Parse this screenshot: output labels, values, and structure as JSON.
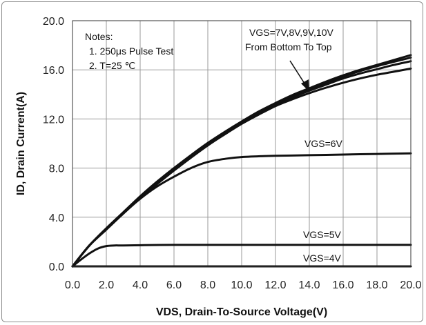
{
  "chart_data": {
    "type": "line",
    "xlabel": "VDS,  Drain-To-Source Voltage(V)",
    "ylabel": "ID,  Drain Current(A)",
    "xlim": [
      0,
      20
    ],
    "ylim": [
      0,
      20
    ],
    "xticks": [
      "0.0",
      "2.0",
      "4.0",
      "6.0",
      "8.0",
      "10.0",
      "12.0",
      "14.0",
      "16.0",
      "18.0",
      "20.0"
    ],
    "yticks": [
      "0.0",
      "4.0",
      "8.0",
      "12.0",
      "16.0",
      "20.0"
    ],
    "grid": true,
    "notes": [
      "Notes:",
      "1. 250μs  Pulse Test",
      "2. T=25 ℃"
    ],
    "annotations": {
      "top_group_line1": "VGS=7V,8V,9V,10V",
      "top_group_line2": "From Bottom To Top",
      "vgs6": "VGS=6V",
      "vgs5": "VGS=5V",
      "vgs4": "VGS=4V"
    },
    "series": [
      {
        "name": "VGS=10V",
        "x": [
          0,
          1,
          2,
          3,
          4,
          5,
          6,
          7,
          8,
          9,
          10,
          11,
          12,
          13,
          14,
          15,
          16,
          17,
          18,
          19,
          20
        ],
        "y": [
          0,
          1.7,
          3.1,
          4.4,
          5.7,
          6.9,
          8.0,
          9.05,
          10.05,
          10.95,
          11.8,
          12.6,
          13.3,
          13.95,
          14.5,
          15.05,
          15.55,
          16.0,
          16.4,
          16.8,
          17.2
        ]
      },
      {
        "name": "VGS=9V",
        "x": [
          0,
          1,
          2,
          3,
          4,
          5,
          6,
          7,
          8,
          9,
          10,
          11,
          12,
          13,
          14,
          15,
          16,
          17,
          18,
          19,
          20
        ],
        "y": [
          0,
          1.7,
          3.05,
          4.35,
          5.65,
          6.85,
          7.95,
          9.0,
          10.0,
          10.9,
          11.75,
          12.55,
          13.25,
          13.85,
          14.4,
          14.95,
          15.45,
          15.9,
          16.3,
          16.65,
          17.0
        ]
      },
      {
        "name": "VGS=8V",
        "x": [
          0,
          1,
          2,
          3,
          4,
          5,
          6,
          7,
          8,
          9,
          10,
          11,
          12,
          13,
          14,
          15,
          16,
          17,
          18,
          19,
          20
        ],
        "y": [
          0,
          1.7,
          3.05,
          4.3,
          5.6,
          6.8,
          7.9,
          8.95,
          9.95,
          10.85,
          11.7,
          12.45,
          13.15,
          13.75,
          14.3,
          14.8,
          15.3,
          15.7,
          16.05,
          16.4,
          16.7
        ]
      },
      {
        "name": "VGS=7V",
        "x": [
          0,
          1,
          2,
          3,
          4,
          5,
          6,
          7,
          8,
          9,
          10,
          11,
          12,
          13,
          14,
          15,
          16,
          17,
          18,
          19,
          20
        ],
        "y": [
          0,
          1.7,
          3.0,
          4.3,
          5.55,
          6.7,
          7.8,
          8.85,
          9.85,
          10.75,
          11.6,
          12.35,
          13.05,
          13.6,
          14.1,
          14.55,
          14.95,
          15.3,
          15.6,
          15.85,
          16.1
        ]
      },
      {
        "name": "VGS=6V",
        "x": [
          0,
          1,
          2,
          3,
          4,
          5,
          6,
          7,
          8,
          9,
          10,
          12,
          14,
          16,
          18,
          20
        ],
        "y": [
          0,
          1.7,
          3.0,
          4.3,
          5.5,
          6.5,
          7.3,
          8.0,
          8.5,
          8.75,
          8.9,
          9.0,
          9.05,
          9.1,
          9.15,
          9.2
        ]
      },
      {
        "name": "VGS=5V",
        "x": [
          0,
          0.5,
          1,
          1.5,
          2,
          2.5,
          3,
          4,
          6,
          10,
          20
        ],
        "y": [
          0,
          0.55,
          1.05,
          1.45,
          1.65,
          1.7,
          1.7,
          1.72,
          1.75,
          1.75,
          1.75
        ]
      },
      {
        "name": "VGS=4V",
        "x": [
          0,
          20
        ],
        "y": [
          0,
          0
        ]
      }
    ]
  }
}
